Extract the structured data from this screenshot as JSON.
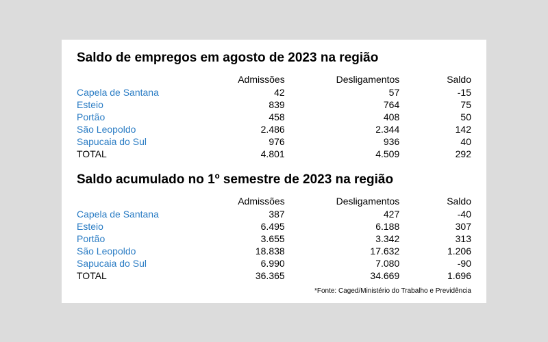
{
  "table1": {
    "title": "Saldo de empregos em agosto de 2023 na região",
    "headers": {
      "col1": "",
      "col2": "Admissões",
      "col3": "Desligamentos",
      "col4": "Saldo"
    },
    "rows": [
      {
        "city": "Capela de Santana",
        "admissoes": "42",
        "desligamentos": "57",
        "saldo": "-15"
      },
      {
        "city": "Esteio",
        "admissoes": "839",
        "desligamentos": "764",
        "saldo": "75"
      },
      {
        "city": "Portão",
        "admissoes": "458",
        "desligamentos": "408",
        "saldo": "50"
      },
      {
        "city": "São Leopoldo",
        "admissoes": "2.486",
        "desligamentos": "2.344",
        "saldo": "142"
      },
      {
        "city": "Sapucaia do Sul",
        "admissoes": "976",
        "desligamentos": "936",
        "saldo": "40"
      }
    ],
    "total": {
      "label": "TOTAL",
      "admissoes": "4.801",
      "desligamentos": "4.509",
      "saldo": "292"
    }
  },
  "table2": {
    "title": "Saldo acumulado no 1º semestre de 2023 na região",
    "headers": {
      "col1": "",
      "col2": "Admissões",
      "col3": "Desligamentos",
      "col4": "Saldo"
    },
    "rows": [
      {
        "city": "Capela de Santana",
        "admissoes": "387",
        "desligamentos": "427",
        "saldo": "-40"
      },
      {
        "city": "Esteio",
        "admissoes": "6.495",
        "desligamentos": "6.188",
        "saldo": "307"
      },
      {
        "city": "Portão",
        "admissoes": "3.655",
        "desligamentos": "3.342",
        "saldo": "313"
      },
      {
        "city": "São Leopoldo",
        "admissoes": "18.838",
        "desligamentos": "17.632",
        "saldo": "1.206"
      },
      {
        "city": "Sapucaia do Sul",
        "admissoes": "6.990",
        "desligamentos": "7.080",
        "saldo": "-90"
      }
    ],
    "total": {
      "label": "TOTAL",
      "admissoes": "36.365",
      "desligamentos": "34.669",
      "saldo": "1.696"
    }
  },
  "source": "*Fonte: Caged/Ministério do Trabalho e Previdência",
  "styling": {
    "background_color": "#dcdcdc",
    "panel_background": "#ffffff",
    "title_color": "#000000",
    "title_fontsize": 19,
    "text_color": "#000000",
    "city_color": "#2a7cc4",
    "body_fontsize": 14,
    "source_fontsize": 10,
    "font_family": "Arial"
  }
}
